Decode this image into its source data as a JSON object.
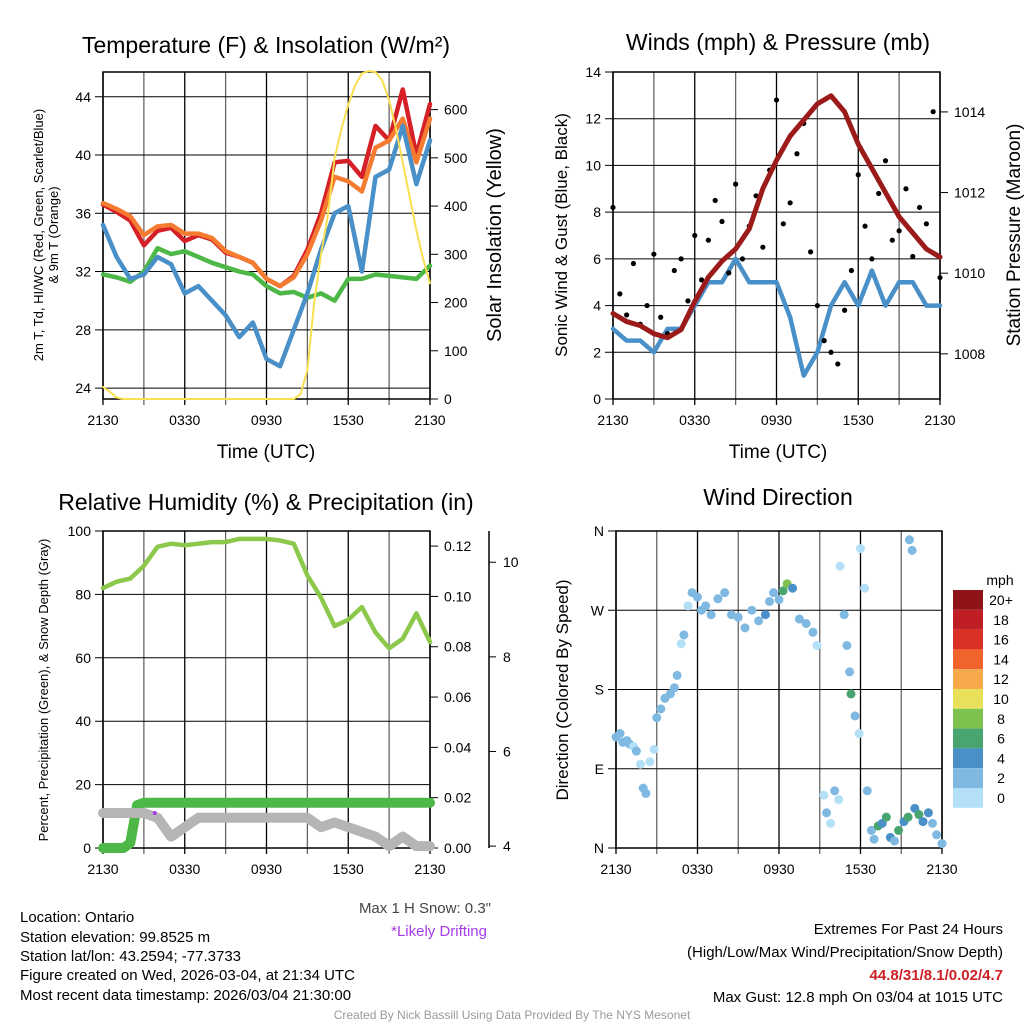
{
  "footer": {
    "location": "Location: Ontario",
    "elevation": "Station elevation: 99.8525 m",
    "latlon": "Station lat/lon: 43.2594; -77.3733",
    "created": "Figure created on Wed, 2026-03-04, at 21:34 UTC",
    "recent": "Most recent data timestamp: 2026/03/04 21:30:00",
    "credit": "Created By Nick Bassill Using Data Provided By The NYS Mesonet",
    "max_snow": "Max 1 H Snow: 0.3\"",
    "drifting": "*Likely Drifting",
    "extremes_title": "Extremes For Past 24 Hours",
    "extremes_sub": "(High/Low/Max Wind/Precipitation/Snow Depth)",
    "extremes_values": "44.8/31/8.1/0.02/4.7",
    "max_gust": "Max Gust: 12.8 mph On 03/04 at 1015 UTC"
  },
  "colors": {
    "red": "#d42026",
    "orange": "#f47b30",
    "green": "#4db848",
    "blue": "#4a90c8",
    "yellow": "#f8e050",
    "maroon": "#9b1b1b",
    "rh": "#8cc84b",
    "gray": "#b5b5b5",
    "purple": "#a43ae8",
    "extremes": "#cc2027"
  },
  "chart_data": [
    {
      "type": "line",
      "title": "Temperature (F) & Insolation (W/m²)",
      "xlabel": "Time (UTC)",
      "ylabel": "2m T, Td, HI/WC (Red, Green, Scarlet/Blue)",
      "ylabel2": "& 9m T (Orange)",
      "y2label": "Solar Insolation (Yellow)",
      "xticks": [
        "2130",
        "0330",
        "0930",
        "1530",
        "2130"
      ],
      "x_hours": 24,
      "ylim": [
        23.25,
        45.7
      ],
      "yticks": [
        24,
        28,
        32,
        36,
        40,
        44
      ],
      "y2lim": [
        0,
        678
      ],
      "y2ticks": [
        0,
        100,
        200,
        300,
        400,
        500,
        600
      ],
      "series": [
        {
          "name": "2m T",
          "color": "red",
          "axis": "left",
          "values": [
            36.6,
            36.1,
            35.5,
            33.8,
            34.8,
            35.0,
            34.1,
            34.5,
            34.2,
            33.3,
            33.0,
            32.6,
            31.5,
            31.0,
            31.7,
            33.5,
            36.0,
            39.5,
            39.6,
            38.5,
            42.0,
            41.0,
            44.5,
            40.0,
            43.5
          ]
        },
        {
          "name": "9m T",
          "color": "orange",
          "axis": "left",
          "values": [
            36.7,
            36.3,
            35.8,
            34.5,
            35.1,
            35.2,
            34.6,
            34.6,
            34.3,
            33.4,
            33.0,
            32.6,
            31.5,
            31.0,
            31.6,
            33.2,
            35.5,
            38.5,
            38.2,
            37.5,
            40.5,
            41.0,
            42.5,
            39.5,
            42.5
          ]
        },
        {
          "name": "Td",
          "color": "green",
          "axis": "left",
          "values": [
            31.8,
            31.6,
            31.3,
            32.0,
            33.6,
            33.2,
            33.4,
            33.0,
            32.6,
            32.3,
            32.0,
            31.8,
            31.0,
            30.5,
            30.6,
            30.2,
            30.5,
            30.0,
            31.5,
            31.5,
            31.8,
            31.7,
            31.6,
            31.5,
            32.4
          ]
        },
        {
          "name": "HI/WC",
          "color": "blue",
          "axis": "left",
          "values": [
            35.2,
            33.0,
            31.5,
            31.8,
            33.0,
            32.5,
            30.5,
            31.0,
            30.0,
            29.0,
            27.5,
            28.5,
            26.0,
            25.5,
            28.0,
            30.5,
            33.5,
            36.0,
            36.5,
            32.0,
            38.5,
            39.0,
            42.0,
            38.0,
            41.0
          ]
        },
        {
          "name": "Solar",
          "color": "yellow",
          "axis": "right",
          "step": 0.5,
          "values": [
            25,
            15,
            3,
            0,
            0,
            0,
            0,
            0,
            0,
            0,
            0,
            0,
            0,
            0,
            0,
            0,
            0,
            0,
            0,
            0,
            0,
            0,
            0,
            0,
            0,
            0,
            0,
            0,
            0,
            10,
            60,
            200,
            300,
            380,
            500,
            560,
            610,
            650,
            675,
            680,
            678,
            660,
            620,
            560,
            490,
            420,
            350,
            290,
            240
          ]
        }
      ]
    },
    {
      "type": "line",
      "title": "Winds (mph) & Pressure (mb)",
      "xlabel": "Time (UTC)",
      "ylabel": "Sonic Wind & Gust (Blue, Black)",
      "y2label": "Station Pressure (Maroon)",
      "xticks": [
        "2130",
        "0330",
        "0930",
        "1530",
        "2130"
      ],
      "x_hours": 24,
      "ylim": [
        0,
        14
      ],
      "yticks": [
        0,
        2,
        4,
        6,
        8,
        10,
        12,
        14
      ],
      "y2lim": [
        1006.88,
        1014.99
      ],
      "y2ticks": [
        1008,
        1010,
        1012,
        1014
      ],
      "series": [
        {
          "name": "Sonic Wind",
          "color": "blue",
          "axis": "left",
          "values": [
            3,
            2.5,
            2.5,
            2,
            3,
            3,
            4,
            5,
            5,
            6,
            5,
            5,
            5,
            3.5,
            1,
            2,
            4,
            5,
            4,
            5.5,
            4,
            5,
            5,
            4,
            4
          ]
        },
        {
          "name": "Gust",
          "color": "black",
          "axis": "left",
          "type": "scatter",
          "step": 0.5,
          "values": [
            8.2,
            4.5,
            3.6,
            5.8,
            3.2,
            4.0,
            6.2,
            3.5,
            2.8,
            5.5,
            6.0,
            4.2,
            7.0,
            5.1,
            6.8,
            8.5,
            7.6,
            5.4,
            9.2,
            6.0,
            7.4,
            8.7,
            6.5,
            9.8,
            12.8,
            7.5,
            8.4,
            10.5,
            11.8,
            6.3,
            4.0,
            2.5,
            2.0,
            1.5,
            3.8,
            5.5,
            9.6,
            7.4,
            6.0,
            8.8,
            10.2,
            6.8,
            7.2,
            9.0,
            6.1,
            8.2,
            7.5,
            12.3,
            5.2
          ]
        },
        {
          "name": "Pressure",
          "color": "maroon",
          "axis": "right",
          "values": [
            1009.0,
            1008.8,
            1008.7,
            1008.5,
            1008.4,
            1008.6,
            1009.3,
            1009.9,
            1010.3,
            1010.6,
            1011.1,
            1012.1,
            1012.8,
            1013.4,
            1013.8,
            1014.2,
            1014.4,
            1014.0,
            1013.2,
            1012.6,
            1012.0,
            1011.4,
            1011.0,
            1010.6,
            1010.4
          ]
        }
      ]
    },
    {
      "type": "line",
      "title": "Relative Humidity (%) & Precipitation (in)",
      "ylabel": "Percent, Precipitation (Green), & Snow Depth (Gray)",
      "xticks": [
        "2130",
        "0330",
        "0930",
        "1530",
        "2130"
      ],
      "x_hours": 24,
      "ylim": [
        0,
        100
      ],
      "yticks": [
        0,
        20,
        40,
        60,
        80,
        100
      ],
      "y2lim": [
        0,
        0.126
      ],
      "y2ticks": [
        "0.00",
        "0.02",
        "0.04",
        "0.06",
        "0.08",
        "0.10",
        "0.12"
      ],
      "y3lim": [
        3.96,
        10.66
      ],
      "y3ticks": [
        4,
        6,
        8,
        10
      ],
      "series": [
        {
          "name": "RH",
          "color": "rh",
          "axis": "left",
          "values": [
            82,
            84,
            85,
            89,
            95,
            96,
            95.5,
            96,
            96.5,
            96.5,
            97.5,
            97.5,
            97.5,
            97,
            96,
            86,
            79,
            70,
            72,
            76,
            68,
            63,
            66,
            74,
            65
          ]
        },
        {
          "name": "Precipitation",
          "color": "green",
          "axis": "right",
          "step": 0.5,
          "values": [
            0,
            0,
            0,
            0,
            0.002,
            0.017,
            0.018,
            0.018,
            0.018,
            0.018,
            0.018,
            0.018,
            0.018,
            0.018,
            0.018,
            0.018,
            0.018,
            0.018,
            0.018,
            0.018,
            0.018,
            0.018,
            0.018,
            0.018,
            0.018,
            0.018,
            0.018,
            0.018,
            0.018,
            0.018,
            0.018,
            0.018,
            0.018,
            0.018,
            0.018,
            0.018,
            0.018,
            0.018,
            0.018,
            0.018,
            0.018,
            0.018,
            0.018,
            0.018,
            0.018,
            0.018,
            0.018,
            0.018,
            0.018
          ]
        },
        {
          "name": "Snow Depth",
          "color": "gray",
          "axis": "third",
          "values": [
            4.7,
            4.7,
            4.7,
            4.7,
            4.6,
            4.2,
            4.4,
            4.6,
            4.6,
            4.6,
            4.6,
            4.6,
            4.6,
            4.6,
            4.6,
            4.6,
            4.4,
            4.5,
            4.4,
            4.3,
            4.2,
            4.0,
            4.2,
            4.0,
            4.0
          ]
        }
      ],
      "drifting_points": [
        [
          3.8,
          4.7
        ]
      ]
    },
    {
      "type": "scatter",
      "title": "Wind Direction",
      "ylabel": "Direction (Colored By Speed)",
      "xticks": [
        "2130",
        "0330",
        "0930",
        "1530",
        "2130"
      ],
      "x_hours": 24,
      "ylim": [
        0,
        360
      ],
      "yticks": [
        {
          "v": 0,
          "l": "N"
        },
        {
          "v": 90,
          "l": "E"
        },
        {
          "v": 180,
          "l": "S"
        },
        {
          "v": 270,
          "l": "W"
        },
        {
          "v": 360,
          "l": "N"
        }
      ],
      "colorbar_title": "mph",
      "colorbar_labels": [
        "0",
        "2",
        "4",
        "6",
        "8",
        "10",
        "12",
        "14",
        "16",
        "18",
        "20+"
      ],
      "colorbar_colors": [
        "#b3e0f6",
        "#7fb9e2",
        "#4a90c8",
        "#49a56f",
        "#7dc14f",
        "#e8e05a",
        "#f5a94a",
        "#f0642c",
        "#db3026",
        "#bf1e24",
        "#8f1418"
      ],
      "points": [
        [
          0,
          126,
          2
        ],
        [
          0.3,
          130,
          2
        ],
        [
          0.5,
          120,
          2
        ],
        [
          0.8,
          122,
          2
        ],
        [
          1,
          118,
          2
        ],
        [
          1.3,
          115,
          1
        ],
        [
          1.5,
          110,
          2
        ],
        [
          1.8,
          95,
          1
        ],
        [
          2,
          68,
          2
        ],
        [
          2.2,
          62,
          2
        ],
        [
          2.5,
          98,
          1
        ],
        [
          2.8,
          112,
          1
        ],
        [
          3,
          148,
          2
        ],
        [
          3.3,
          158,
          2
        ],
        [
          3.6,
          170,
          2
        ],
        [
          4,
          175,
          3
        ],
        [
          4.3,
          182,
          2
        ],
        [
          4.5,
          196,
          2
        ],
        [
          4.8,
          232,
          1
        ],
        [
          5,
          242,
          2
        ],
        [
          5.3,
          275,
          1
        ],
        [
          5.6,
          290,
          2
        ],
        [
          6,
          285,
          2
        ],
        [
          6.3,
          270,
          2
        ],
        [
          6.6,
          275,
          3
        ],
        [
          7,
          265,
          3
        ],
        [
          7.5,
          283,
          3
        ],
        [
          8,
          290,
          3
        ],
        [
          8.5,
          265,
          2
        ],
        [
          9,
          262,
          2
        ],
        [
          9.5,
          250,
          2
        ],
        [
          10,
          270,
          2
        ],
        [
          10.5,
          258,
          3
        ],
        [
          11,
          265,
          5
        ],
        [
          11.3,
          280,
          3
        ],
        [
          11.6,
          290,
          3
        ],
        [
          12,
          282,
          3
        ],
        [
          12.3,
          292,
          7
        ],
        [
          12.6,
          300,
          8
        ],
        [
          13,
          295,
          4
        ],
        [
          13.5,
          260,
          3
        ],
        [
          14,
          255,
          3
        ],
        [
          14.5,
          245,
          2
        ],
        [
          14.8,
          230,
          1
        ],
        [
          15.3,
          60,
          1
        ],
        [
          15.5,
          40,
          2
        ],
        [
          15.8,
          28,
          1
        ],
        [
          16.1,
          65,
          2
        ],
        [
          16.4,
          55,
          1
        ],
        [
          16.5,
          320,
          1
        ],
        [
          16.8,
          265,
          2
        ],
        [
          17,
          230,
          3
        ],
        [
          17.2,
          200,
          3
        ],
        [
          17.3,
          175,
          6
        ],
        [
          17.6,
          150,
          3
        ],
        [
          17.9,
          130,
          1
        ],
        [
          18,
          340,
          1
        ],
        [
          18.3,
          295,
          1
        ],
        [
          18.5,
          65,
          2
        ],
        [
          18.8,
          20,
          3
        ],
        [
          19,
          10,
          3
        ],
        [
          19.3,
          25,
          6
        ],
        [
          19.6,
          28,
          4
        ],
        [
          19.9,
          35,
          7
        ],
        [
          20.2,
          12,
          4
        ],
        [
          20.5,
          8,
          3
        ],
        [
          20.8,
          20,
          6
        ],
        [
          21.2,
          30,
          5
        ],
        [
          21.5,
          35,
          6
        ],
        [
          21.6,
          350,
          3
        ],
        [
          21.8,
          338,
          3
        ],
        [
          22,
          45,
          4
        ],
        [
          22.3,
          38,
          6
        ],
        [
          22.6,
          30,
          5
        ],
        [
          23,
          40,
          5
        ],
        [
          23.3,
          28,
          3
        ],
        [
          23.6,
          15,
          2
        ],
        [
          24,
          5,
          3
        ]
      ]
    }
  ]
}
